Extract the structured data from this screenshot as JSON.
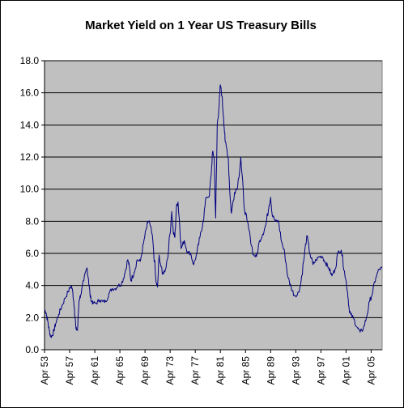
{
  "chart_data": {
    "type": "line",
    "title": "Market Yield on 1 Year US Treasury Bills",
    "xlabel": "",
    "ylabel": "",
    "ylim": [
      0,
      18
    ],
    "xlim": [
      1953.25,
      2007.0
    ],
    "grid": true,
    "legend": "none",
    "colors": {
      "line": "#000080",
      "plot_area": "#c0c0c0",
      "gridline": "#000000"
    },
    "y_ticks": [
      "0.0",
      "2.0",
      "4.0",
      "6.0",
      "8.0",
      "10.0",
      "12.0",
      "14.0",
      "16.0",
      "18.0"
    ],
    "x_ticks": [
      "Apr 53",
      "Apr 57",
      "Apr 61",
      "Apr 65",
      "Apr 69",
      "Apr 73",
      "Apr 77",
      "Apr 81",
      "Apr 85",
      "Apr 89",
      "Apr 93",
      "Apr 97",
      "Apr 01",
      "Apr 05"
    ],
    "series": [
      {
        "x": [
          1953.25,
          1953.5,
          1953.75,
          1954.0,
          1954.25,
          1954.5,
          1954.75,
          1955.0,
          1955.5,
          1956.0,
          1956.5,
          1957.0,
          1957.5,
          1957.75,
          1958.0,
          1958.25,
          1958.5,
          1958.75,
          1959.0,
          1959.5,
          1960.0,
          1960.25,
          1960.5,
          1960.75,
          1961.0,
          1961.5,
          1962.0,
          1962.5,
          1963.0,
          1963.5,
          1964.0,
          1964.5,
          1965.0,
          1965.5,
          1966.0,
          1966.5,
          1966.75,
          1967.0,
          1967.5,
          1968.0,
          1968.5,
          1969.0,
          1969.5,
          1969.75,
          1970.0,
          1970.5,
          1971.0,
          1971.25,
          1971.5,
          1972.0,
          1972.5,
          1973.0,
          1973.5,
          1973.75,
          1974.0,
          1974.25,
          1974.5,
          1974.75,
          1975.0,
          1975.5,
          1976.0,
          1976.5,
          1977.0,
          1977.5,
          1978.0,
          1978.5,
          1979.0,
          1979.5,
          1979.75,
          1980.0,
          1980.25,
          1980.5,
          1980.75,
          1981.0,
          1981.25,
          1981.5,
          1981.75,
          1982.0,
          1982.5,
          1982.75,
          1983.0,
          1983.5,
          1984.0,
          1984.5,
          1985.0,
          1985.5,
          1986.0,
          1986.5,
          1987.0,
          1987.5,
          1988.0,
          1988.5,
          1989.0,
          1989.25,
          1989.5,
          1990.0,
          1990.5,
          1991.0,
          1991.5,
          1992.0,
          1992.5,
          1993.0,
          1993.5,
          1994.0,
          1994.5,
          1995.0,
          1995.5,
          1996.0,
          1996.5,
          1997.0,
          1997.5,
          1998.0,
          1998.5,
          1999.0,
          1999.5,
          2000.0,
          2000.5,
          2001.0,
          2001.5,
          2001.75,
          2002.0,
          2002.5,
          2003.0,
          2003.5,
          2004.0,
          2004.5,
          2005.0,
          2005.5,
          2006.0,
          2006.5,
          2007.0
        ],
        "values": [
          2.5,
          2.3,
          1.8,
          1.2,
          0.8,
          0.9,
          1.2,
          1.6,
          2.2,
          2.7,
          3.2,
          3.6,
          4.0,
          3.6,
          2.6,
          1.3,
          1.2,
          3.1,
          3.4,
          4.3,
          5.1,
          4.4,
          3.4,
          3.0,
          2.9,
          2.9,
          3.1,
          3.0,
          3.0,
          3.5,
          3.8,
          3.8,
          4.0,
          4.1,
          4.7,
          5.6,
          5.2,
          4.3,
          4.8,
          5.6,
          5.5,
          6.6,
          7.6,
          8.0,
          7.9,
          6.8,
          4.2,
          3.9,
          5.9,
          4.7,
          5.0,
          6.2,
          8.6,
          7.3,
          7.0,
          8.9,
          9.2,
          7.9,
          6.3,
          6.8,
          6.1,
          6.0,
          5.3,
          6.0,
          7.0,
          8.0,
          9.5,
          9.6,
          10.8,
          12.3,
          12.0,
          8.2,
          14.0,
          15.0,
          16.5,
          15.8,
          14.5,
          13.0,
          12.0,
          9.8,
          8.5,
          9.8,
          10.2,
          12.0,
          9.0,
          8.0,
          7.0,
          5.9,
          5.8,
          6.8,
          7.2,
          7.8,
          9.0,
          9.5,
          8.4,
          8.0,
          8.0,
          6.7,
          6.0,
          4.5,
          3.9,
          3.4,
          3.4,
          4.0,
          5.5,
          7.1,
          6.0,
          5.3,
          5.6,
          5.8,
          5.8,
          5.4,
          5.1,
          4.6,
          5.0,
          6.1,
          6.2,
          4.9,
          3.6,
          2.5,
          2.2,
          1.9,
          1.4,
          1.1,
          1.3,
          2.0,
          3.0,
          3.6,
          4.5,
          5.0,
          5.1
        ]
      }
    ]
  }
}
